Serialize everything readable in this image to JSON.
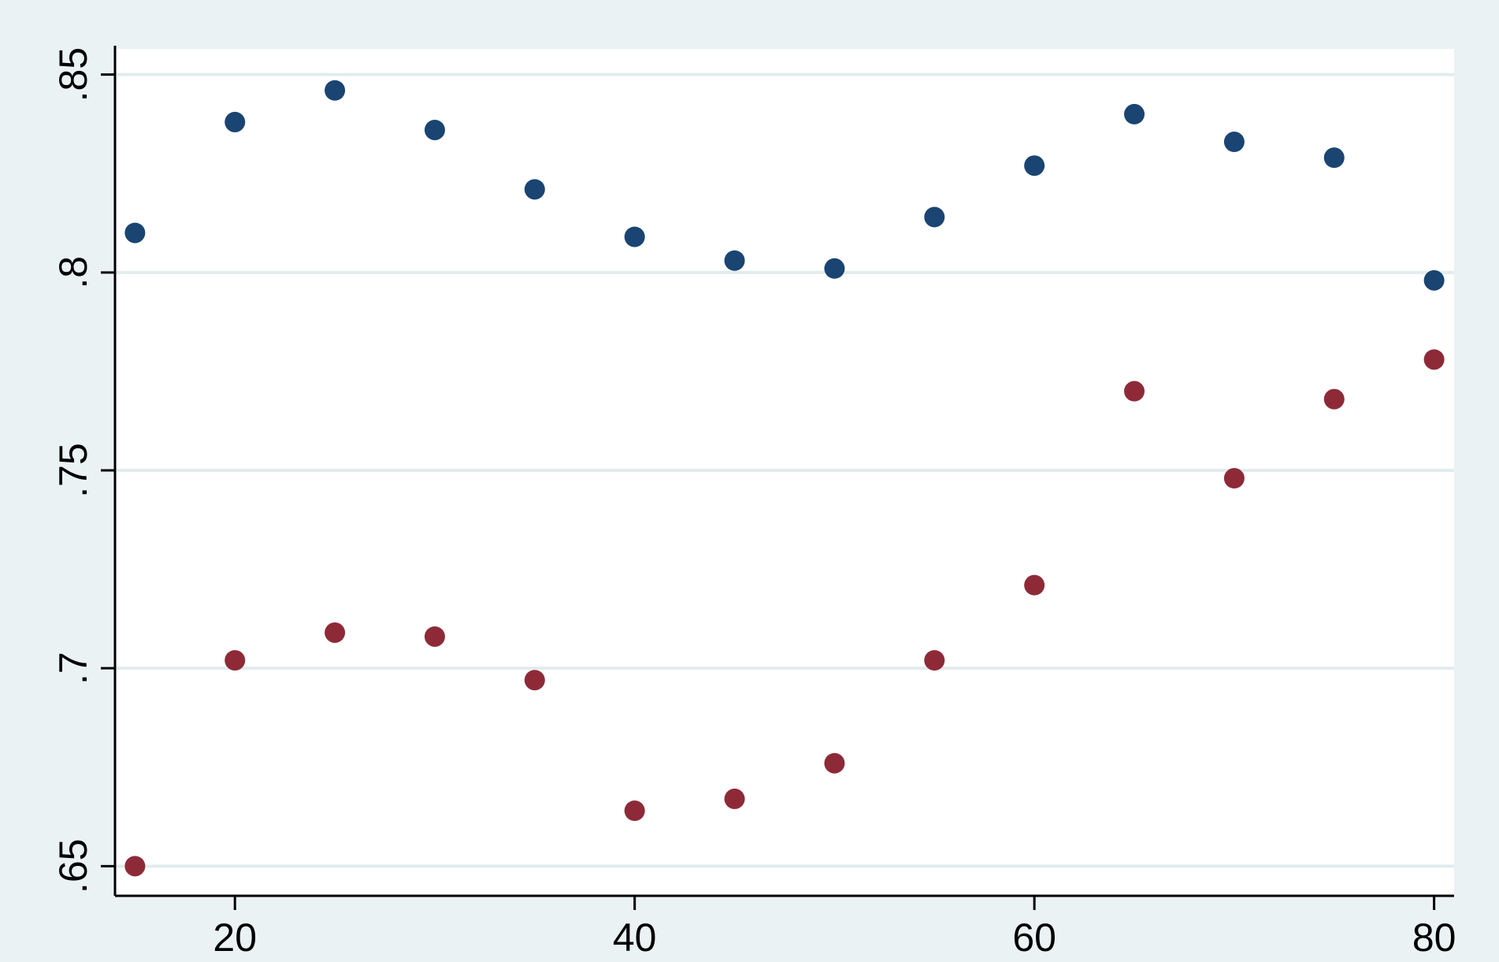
{
  "chart_data": {
    "type": "scatter",
    "title": "",
    "xlabel": "",
    "ylabel": "",
    "xlim": [
      14,
      81
    ],
    "ylim": [
      0.6425,
      0.8565
    ],
    "x_ticks": [
      20,
      40,
      60,
      80
    ],
    "x_tick_labels": [
      "20",
      "40",
      "60",
      "80"
    ],
    "y_ticks": [
      0.65,
      0.7,
      0.75,
      0.8,
      0.85
    ],
    "y_tick_labels": [
      ".65",
      ".7",
      ".75",
      ".8",
      ".85"
    ],
    "grid": true,
    "legend": "none",
    "series": [
      {
        "color": "#1a4472",
        "x": [
          15,
          20,
          25,
          30,
          35,
          40,
          45,
          50,
          55,
          60,
          65,
          70,
          75,
          80
        ],
        "y": [
          0.81,
          0.838,
          0.846,
          0.836,
          0.821,
          0.809,
          0.803,
          0.801,
          0.814,
          0.827,
          0.84,
          0.833,
          0.829,
          0.798
        ]
      },
      {
        "color": "#8e2a38",
        "x": [
          15,
          20,
          25,
          30,
          35,
          40,
          45,
          50,
          55,
          60,
          65,
          70,
          75,
          80
        ],
        "y": [
          0.65,
          0.702,
          0.709,
          0.708,
          0.697,
          0.664,
          0.667,
          0.676,
          0.702,
          0.721,
          0.77,
          0.748,
          0.768,
          0.778
        ]
      }
    ]
  },
  "colors": {
    "outer_background": "#eaf2f3",
    "plot_background": "#ffffff",
    "gridline": "#e2ecee",
    "axis": "#000000"
  }
}
